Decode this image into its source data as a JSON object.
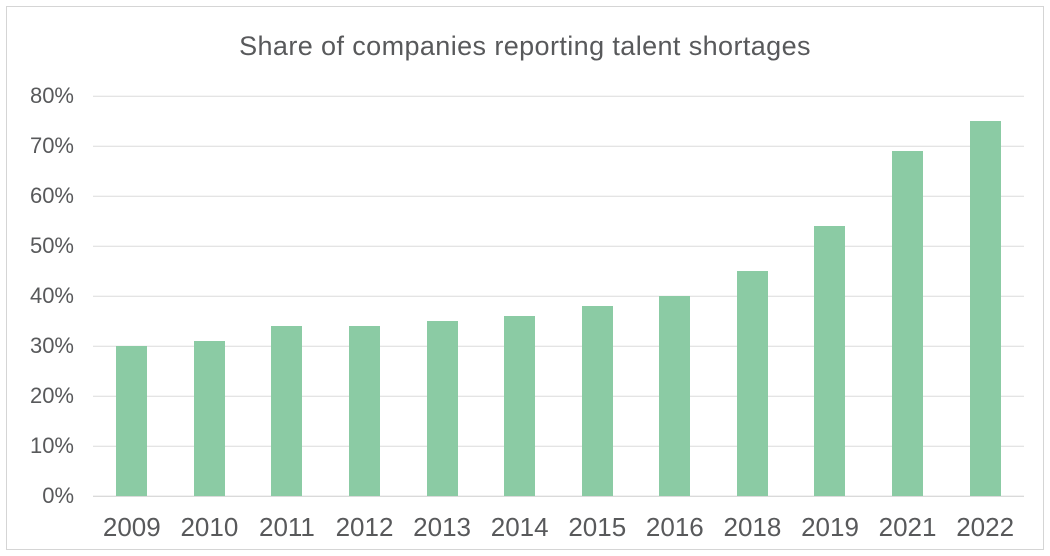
{
  "chart_data": {
    "type": "bar",
    "title": "Share of companies reporting talent shortages",
    "categories": [
      "2009",
      "2010",
      "2011",
      "2012",
      "2013",
      "2014",
      "2015",
      "2016",
      "2018",
      "2019",
      "2021",
      "2022"
    ],
    "values": [
      30,
      31,
      34,
      34,
      35,
      36,
      38,
      40,
      45,
      54,
      69,
      75
    ],
    "value_unit": "%",
    "xlabel": "",
    "ylabel": "",
    "ylim": [
      0,
      80
    ],
    "ytick_step": 10,
    "ytick_labels": [
      "0%",
      "10%",
      "20%",
      "30%",
      "40%",
      "50%",
      "60%",
      "70%",
      "80%"
    ],
    "grid": true,
    "legend": "none",
    "colors": {
      "bar": "#8bcba4",
      "text": "#58595b",
      "gridline": "#dbdbdb",
      "baseline": "#cdcdcd",
      "frame_border": "#d5d5d5",
      "background": "#ffffff"
    }
  }
}
